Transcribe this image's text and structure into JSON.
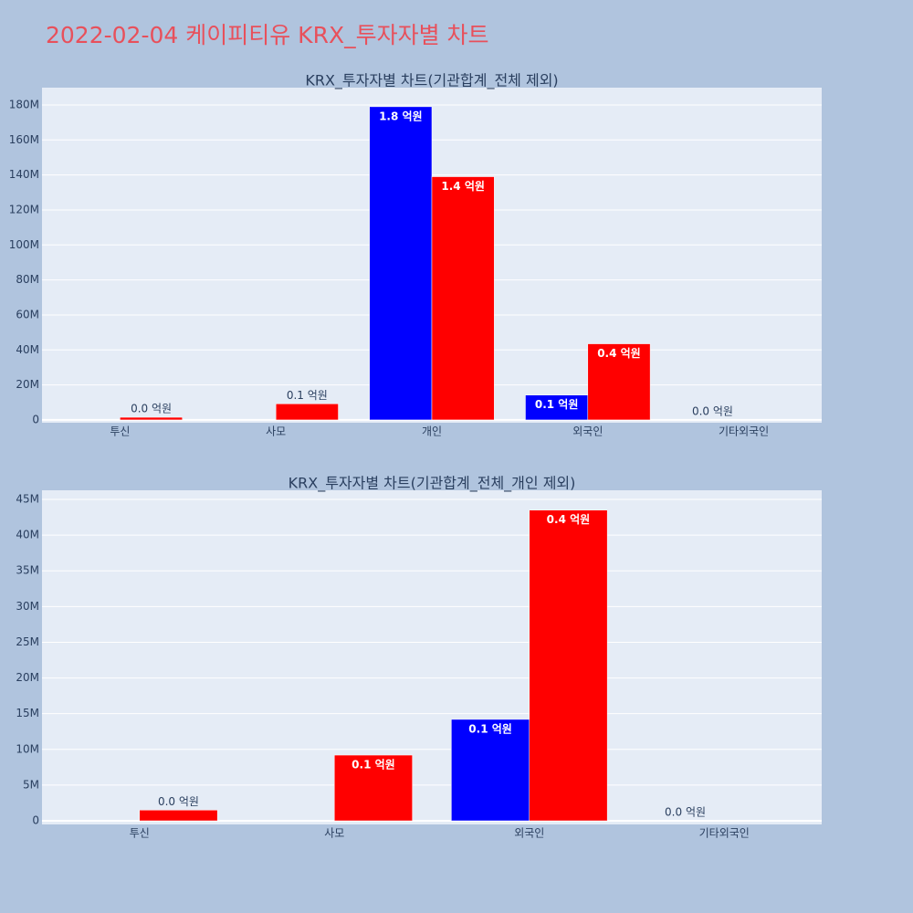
{
  "title": "2022-02-04 케이피티유 KRX_투자자별 차트",
  "chart_data": [
    {
      "type": "bar",
      "title": "KRX_투자자별 차트(기관합계_전체 제외)",
      "categories": [
        "투신",
        "사모",
        "개인",
        "외국인",
        "기타외국인"
      ],
      "series": [
        {
          "color": "#0000ff",
          "values": [
            null,
            null,
            179000000,
            14200000,
            0
          ],
          "value_labels": [
            null,
            null,
            "1.8 억원",
            "0.1 억원",
            "0.0 억원"
          ]
        },
        {
          "color": "#ff0000",
          "values": [
            1500000,
            9200000,
            139000000,
            43500000,
            null
          ],
          "value_labels": [
            "0.0 억원",
            "0.1 억원",
            "1.4 억원",
            "0.4 억원",
            null
          ]
        }
      ],
      "ylim": [
        -1600000,
        189900000
      ],
      "yticks": [
        0,
        {
          "value": 20000000,
          "label": "20M"
        },
        {
          "value": 40000000,
          "label": "40M"
        },
        {
          "value": 60000000,
          "label": "60M"
        },
        {
          "value": 80000000,
          "label": "80M"
        },
        {
          "value": 100000000,
          "label": "100M"
        },
        {
          "value": 120000000,
          "label": "120M"
        },
        {
          "value": 140000000,
          "label": "140M"
        },
        {
          "value": 160000000,
          "label": "160M"
        },
        {
          "value": 180000000,
          "label": "180M"
        }
      ],
      "grid": true
    },
    {
      "type": "bar",
      "title": "KRX_투자자별 차트(기관합계_전체_개인 제외)",
      "categories": [
        "투신",
        "사모",
        "외국인",
        "기타외국인"
      ],
      "series": [
        {
          "color": "#0000ff",
          "values": [
            null,
            null,
            14200000,
            0
          ],
          "value_labels": [
            null,
            null,
            "0.1 억원",
            "0.0 억원"
          ]
        },
        {
          "color": "#ff0000",
          "values": [
            1500000,
            9200000,
            43500000,
            null
          ],
          "value_labels": [
            "0.0 억원",
            "0.1 억원",
            "0.4 억원",
            null
          ]
        }
      ],
      "ylim": [
        -510000,
        46280000
      ],
      "yticks": [
        0,
        {
          "value": 5000000,
          "label": "5M"
        },
        {
          "value": 10000000,
          "label": "10M"
        },
        {
          "value": 15000000,
          "label": "15M"
        },
        {
          "value": 20000000,
          "label": "20M"
        },
        {
          "value": 25000000,
          "label": "25M"
        },
        {
          "value": 30000000,
          "label": "30M"
        },
        {
          "value": 35000000,
          "label": "35M"
        },
        {
          "value": 40000000,
          "label": "40M"
        },
        {
          "value": 45000000,
          "label": "45M"
        }
      ],
      "grid": true
    }
  ]
}
